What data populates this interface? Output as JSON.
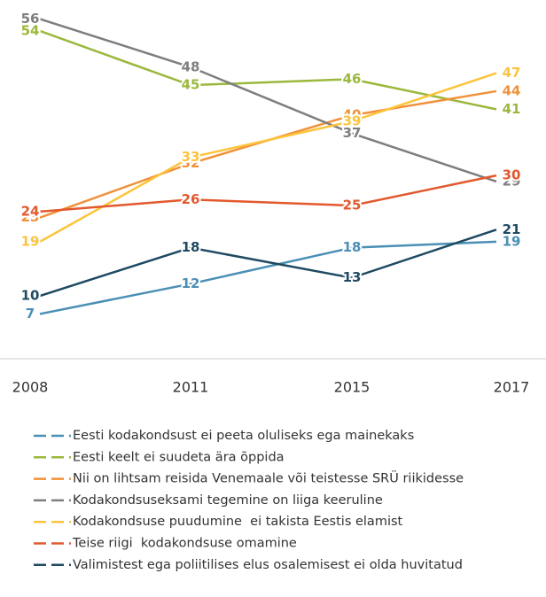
{
  "chart_data": {
    "type": "line",
    "categories": [
      "2008",
      "2011",
      "2015",
      "2017"
    ],
    "ylim": [
      0,
      59
    ],
    "series": [
      {
        "name": "Eesti kodakondsust ei peeta oluliseks ega mainekaks",
        "color": "#4a8fb5",
        "values": [
          7,
          12,
          18,
          19
        ]
      },
      {
        "name": "Eesti keelt ei suudeta ära õppida",
        "color": "#9bb83c",
        "values": [
          54,
          45,
          46,
          41
        ]
      },
      {
        "name": "Nii on lihtsam reisida Venemaale või teistesse SRÜ riikidesse",
        "color": "#f0913a",
        "values": [
          23,
          32,
          40,
          44
        ]
      },
      {
        "name": "Kodakondsuseksami tegemine on liiga keeruline",
        "color": "#7e7e7e",
        "values": [
          56,
          48,
          37,
          29
        ]
      },
      {
        "name": "Kodakondsuse puudumine  ei takista Eestis elamist",
        "color": "#fcc43b",
        "values": [
          19,
          33,
          39,
          47
        ]
      },
      {
        "name": "Teise riigi  kodakondsuse omamine",
        "color": "#e2592d",
        "values": [
          24,
          26,
          25,
          30
        ]
      },
      {
        "name": "Valimistest ega poliitilises elus osalemisest ei olda huvitatud",
        "color": "#1f4a61",
        "values": [
          10,
          18,
          13,
          21
        ]
      }
    ]
  }
}
